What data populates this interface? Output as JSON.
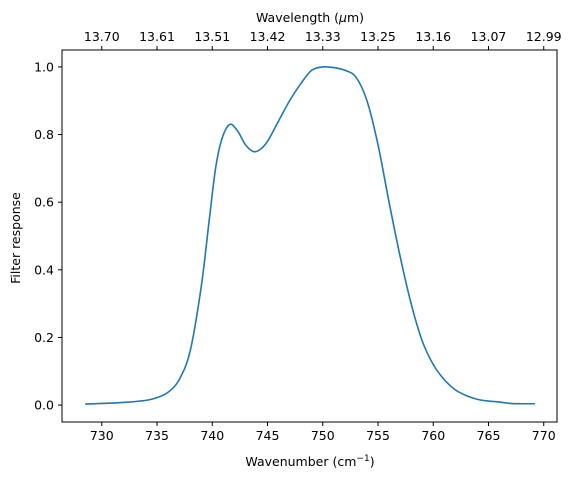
{
  "chart_data": {
    "type": "line",
    "x_axis_bottom": {
      "label_main": "Wavenumber (cm",
      "label_sup": "−1",
      "label_end": ")",
      "ticks": [
        730,
        735,
        740,
        745,
        750,
        755,
        760,
        765,
        770
      ],
      "range": [
        726.4,
        771.2
      ]
    },
    "x_axis_top": {
      "label_main": "Wavelength (",
      "label_italic": "μ",
      "label_end": "m)",
      "tick_labels": [
        "13.70",
        "13.61",
        "13.51",
        "13.42",
        "13.33",
        "13.25",
        "13.16",
        "13.07",
        "12.99"
      ],
      "tick_positions_wavenumber": [
        730,
        735,
        740,
        745,
        750,
        755,
        760,
        765,
        770
      ]
    },
    "y_axis": {
      "label": "Filter response",
      "ticks": [
        "0.0",
        "0.2",
        "0.4",
        "0.6",
        "0.8",
        "1.0"
      ],
      "tick_values": [
        0,
        0.2,
        0.4,
        0.6,
        0.8,
        1.0
      ],
      "range": [
        -0.05,
        1.05
      ]
    },
    "series": [
      {
        "color": "#1f77b4",
        "points": [
          [
            728.5,
            0.003
          ],
          [
            730,
            0.005
          ],
          [
            732,
            0.008
          ],
          [
            734,
            0.014
          ],
          [
            735,
            0.022
          ],
          [
            736,
            0.038
          ],
          [
            737,
            0.075
          ],
          [
            738,
            0.16
          ],
          [
            739,
            0.35
          ],
          [
            739.7,
            0.54
          ],
          [
            740.3,
            0.7
          ],
          [
            740.9,
            0.79
          ],
          [
            741.6,
            0.83
          ],
          [
            742.3,
            0.81
          ],
          [
            743,
            0.77
          ],
          [
            743.7,
            0.75
          ],
          [
            744.3,
            0.755
          ],
          [
            745,
            0.78
          ],
          [
            746,
            0.84
          ],
          [
            747,
            0.9
          ],
          [
            748,
            0.95
          ],
          [
            749,
            0.99
          ],
          [
            750,
            1.0
          ],
          [
            751,
            0.998
          ],
          [
            752,
            0.99
          ],
          [
            753,
            0.97
          ],
          [
            754,
            0.9
          ],
          [
            755,
            0.77
          ],
          [
            756,
            0.6
          ],
          [
            757,
            0.44
          ],
          [
            758,
            0.3
          ],
          [
            759,
            0.19
          ],
          [
            760,
            0.12
          ],
          [
            761,
            0.075
          ],
          [
            762,
            0.045
          ],
          [
            763,
            0.028
          ],
          [
            764,
            0.017
          ],
          [
            765,
            0.012
          ],
          [
            766,
            0.009
          ],
          [
            767,
            0.005
          ],
          [
            768,
            0.004
          ],
          [
            769.2,
            0.004
          ]
        ]
      }
    ]
  }
}
